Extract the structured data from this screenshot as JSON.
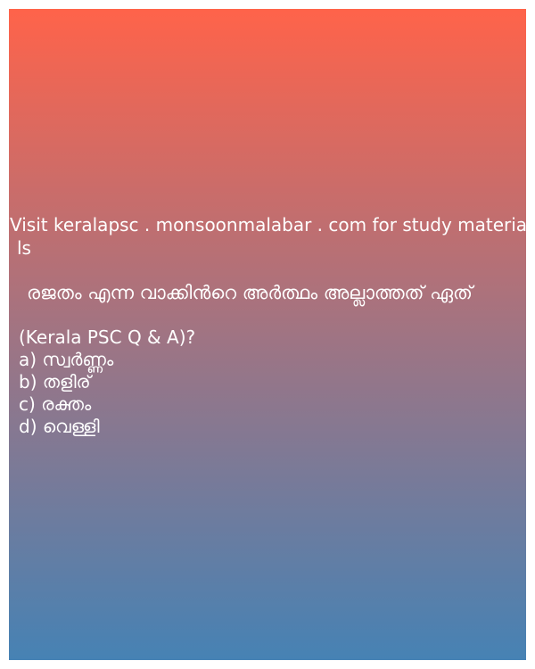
{
  "promo": {
    "line1": "Visit keralapsc . monsoonmalabar . com for study materia",
    "line2": "ls"
  },
  "question": {
    "malayalam": "രജതം എന്ന വാക്കിൻറെ അർത്ഥം അല്ലാത്തത് ഏത്",
    "source": "(Kerala PSC Q & A)?"
  },
  "options": [
    "a) സ്വർണ്ണം",
    "b) തളിര്",
    "c) രക്തം",
    "d) വെള്ളി"
  ],
  "colors": {
    "gradient_top": "#ff634a",
    "gradient_bottom": "#4682b4",
    "text": "#ffffff"
  }
}
